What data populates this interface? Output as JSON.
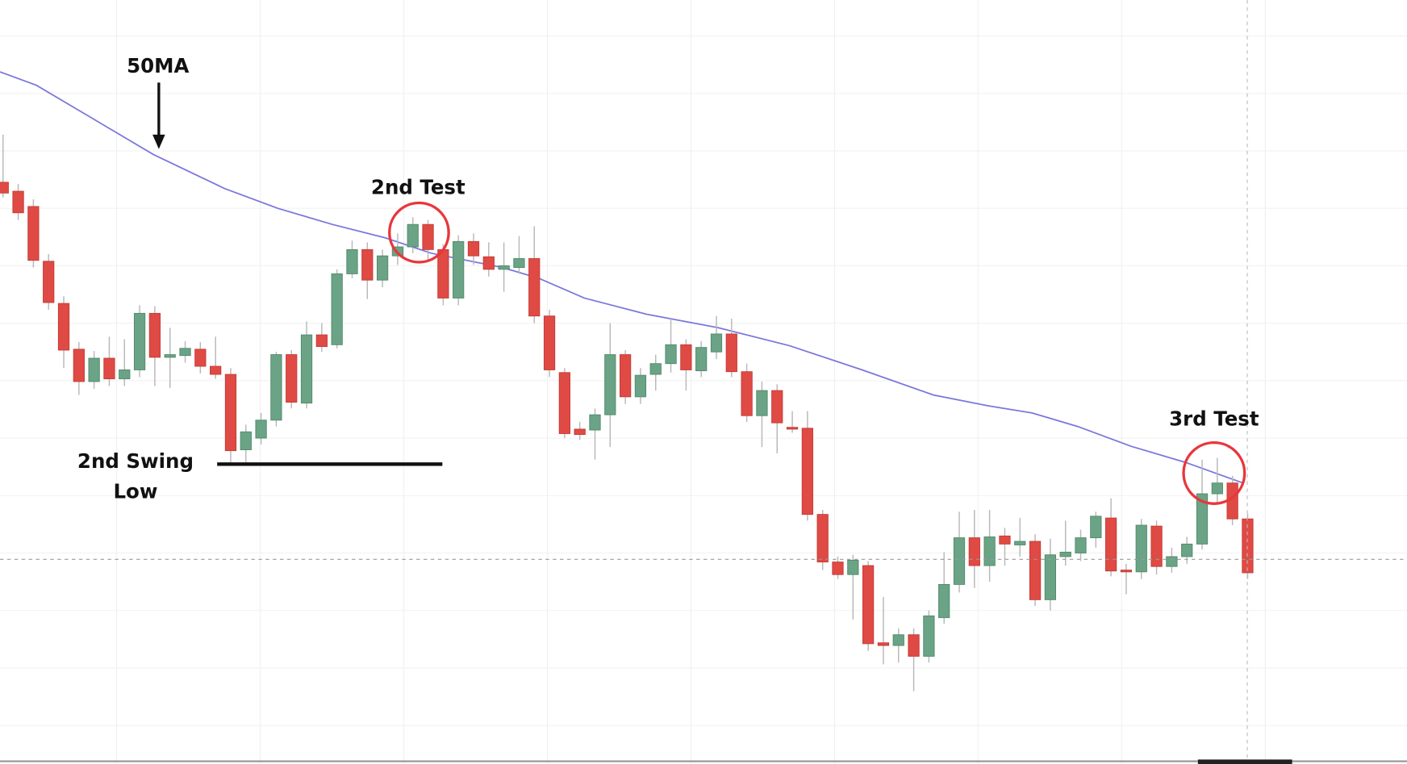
{
  "chart_data": {
    "type": "candlestick",
    "xlim": [
      -0.2,
      92.5
    ],
    "ylim": [
      149,
      1000
    ],
    "up_color": "#6aa385",
    "down_color": "#e04a44",
    "open": [
      797,
      787,
      770,
      709,
      662,
      611,
      575,
      601,
      578,
      588,
      651,
      602,
      604,
      611,
      592,
      583,
      499,
      512,
      532,
      605,
      551,
      627,
      616,
      695,
      722,
      688,
      715,
      725,
      750,
      722,
      668,
      731,
      714,
      700,
      702,
      712,
      648,
      585,
      522,
      521,
      538,
      605,
      558,
      583,
      595,
      616,
      587,
      608,
      628,
      586,
      537,
      565,
      524,
      523,
      427,
      374,
      360,
      370,
      284,
      281,
      293,
      269,
      312,
      349,
      401,
      370,
      403,
      393,
      397,
      332,
      380,
      384,
      401,
      423,
      365,
      363,
      414,
      369,
      380,
      394,
      450,
      462,
      422
    ],
    "high": [
      850,
      795,
      778,
      717,
      670,
      619,
      609,
      625,
      622,
      660,
      659,
      635,
      620,
      619,
      625,
      590,
      527,
      540,
      608,
      610,
      642,
      640,
      700,
      732,
      730,
      722,
      740,
      758,
      755,
      728,
      738,
      740,
      730,
      730,
      737,
      748,
      655,
      590,
      530,
      545,
      640,
      610,
      590,
      605,
      645,
      622,
      620,
      648,
      645,
      595,
      575,
      572,
      542,
      542,
      432,
      380,
      382,
      375,
      335,
      300,
      300,
      320,
      385,
      430,
      432,
      432,
      412,
      423,
      405,
      400,
      420,
      410,
      430,
      445,
      372,
      422,
      420,
      390,
      402,
      488,
      490,
      470,
      428
    ],
    "low": [
      780,
      755,
      702,
      655,
      590,
      560,
      567,
      570,
      570,
      580,
      570,
      568,
      596,
      584,
      578,
      485,
      485,
      505,
      525,
      545,
      545,
      608,
      612,
      690,
      667,
      680,
      705,
      718,
      710,
      660,
      660,
      705,
      692,
      675,
      695,
      640,
      580,
      512,
      510,
      488,
      502,
      550,
      550,
      565,
      585,
      565,
      580,
      600,
      580,
      530,
      502,
      495,
      518,
      420,
      365,
      355,
      310,
      275,
      260,
      262,
      230,
      262,
      305,
      340,
      345,
      352,
      370,
      380,
      325,
      320,
      370,
      375,
      390,
      358,
      338,
      355,
      360,
      362,
      372,
      388,
      440,
      415,
      355
    ],
    "close": [
      785,
      763,
      710,
      663,
      610,
      575,
      601,
      578,
      588,
      651,
      602,
      605,
      612,
      592,
      583,
      498,
      519,
      532,
      605,
      552,
      627,
      614,
      695,
      722,
      688,
      715,
      725,
      750,
      722,
      668,
      731,
      715,
      700,
      704,
      712,
      648,
      588,
      517,
      516,
      538,
      605,
      558,
      582,
      595,
      616,
      588,
      613,
      628,
      586,
      537,
      565,
      529,
      522,
      427,
      374,
      360,
      376,
      283,
      281,
      293,
      269,
      314,
      349,
      401,
      370,
      402,
      394,
      397,
      332,
      382,
      385,
      401,
      425,
      364,
      363,
      415,
      369,
      380,
      394,
      450,
      462,
      422,
      362
    ],
    "moving_average": {
      "name": "50MA",
      "color": "#7a78dc",
      "x": [
        -0.2,
        2.2,
        5.7,
        9.9,
        14.6,
        18.1,
        21.7,
        25.2,
        28.2,
        32.9,
        35.3,
        38.3,
        42.4,
        47.1,
        51.8,
        56.6,
        61.3,
        64.9,
        67.8,
        70.8,
        74.3,
        77.9,
        81.7
      ],
      "values": [
        920,
        905,
        870,
        828,
        790,
        768,
        750,
        735,
        718,
        702,
        690,
        668,
        650,
        635,
        615,
        588,
        560,
        548,
        540,
        525,
        503,
        485,
        462
      ]
    },
    "annotations": [
      {
        "text": "50MA"
      },
      {
        "text": "2nd Test"
      },
      {
        "text": "2nd Swing Low"
      },
      {
        "text": "3rd Test"
      }
    ]
  }
}
